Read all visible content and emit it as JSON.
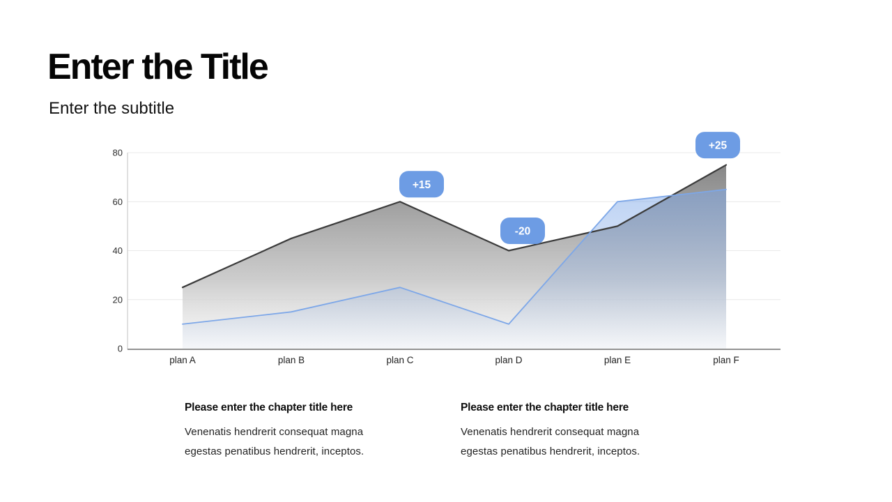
{
  "slide": {
    "title": "Enter the Title",
    "subtitle": "Enter the subtitle"
  },
  "chart_data": {
    "type": "area",
    "title": "",
    "xlabel": "",
    "ylabel": "",
    "categories": [
      "plan A",
      "plan B",
      "plan C",
      "plan D",
      "plan E",
      "plan F"
    ],
    "series": [
      {
        "name": "series-gray",
        "color": "#3b3b3b",
        "values": [
          25,
          45,
          60,
          40,
          50,
          75
        ]
      },
      {
        "name": "series-blue",
        "color": "#7da7e8",
        "values": [
          10,
          15,
          25,
          10,
          60,
          65
        ]
      }
    ],
    "annotations": [
      {
        "label": "+15",
        "category": "plan C"
      },
      {
        "label": "-20",
        "category": "plan D"
      },
      {
        "label": "+25",
        "category": "plan F"
      }
    ],
    "y_ticks": [
      0,
      20,
      40,
      60,
      80
    ],
    "ylim": [
      0,
      80
    ],
    "grid": true,
    "legend": false,
    "annotation_badge_color": "#6d9ce4"
  },
  "footer": {
    "columns": [
      {
        "heading": "Please enter the chapter title here",
        "body_line1": "Venenatis hendrerit consequat magna",
        "body_line2": "egestas penatibus hendrerit, inceptos."
      },
      {
        "heading": "Please enter the chapter title here",
        "body_line1": "Venenatis hendrerit consequat magna",
        "body_line2": "egestas penatibus hendrerit, inceptos."
      }
    ]
  }
}
